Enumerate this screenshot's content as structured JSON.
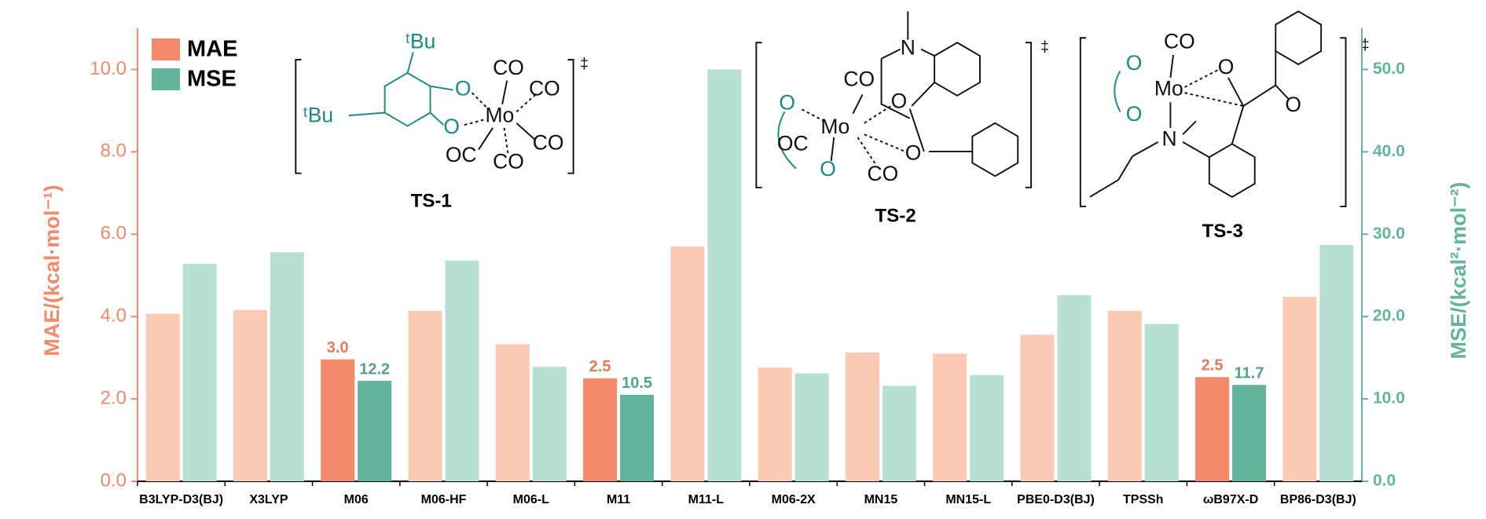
{
  "chart_data": {
    "type": "bar",
    "categories": [
      "B3LYP-D3(BJ)",
      "X3LYP",
      "M06",
      "M06-HF",
      "M06-L",
      "M11",
      "M11-L",
      "M06-2X",
      "MN15",
      "MN15-L",
      "PBE0-D3(BJ)",
      "TPSSh",
      "ωB97X-D",
      "BP86-D3(BJ)"
    ],
    "ylabel": "MAE/(kcal·mol⁻¹)",
    "y2label": "MSE/(kcal²·mol⁻²)",
    "ylim": [
      0,
      11
    ],
    "yticks": [
      {
        "value": 0,
        "label": "0.0"
      },
      {
        "value": 2,
        "label": "2.0"
      },
      {
        "value": 4,
        "label": "4.0"
      },
      {
        "value": 6,
        "label": "6.0"
      },
      {
        "value": 8,
        "label": "8.0"
      },
      {
        "value": 10,
        "label": "10.0"
      }
    ],
    "y2lim": [
      0,
      55
    ],
    "y2ticks": [
      {
        "value": 0,
        "label": "0.0"
      },
      {
        "value": 10,
        "label": "10.0"
      },
      {
        "value": 20,
        "label": "20.0"
      },
      {
        "value": 30,
        "label": "30.0"
      },
      {
        "value": 40,
        "label": "40.0"
      },
      {
        "value": 50,
        "label": "50.0"
      }
    ],
    "legend": "upper left",
    "series": [
      {
        "name": "MAE",
        "color": "#f4896b",
        "axis": "y",
        "values": [
          4.07,
          4.16,
          2.96,
          4.14,
          3.33,
          2.5,
          5.7,
          2.76,
          3.13,
          3.1,
          3.56,
          4.14,
          2.53,
          4.48
        ],
        "value_labels": [
          null,
          null,
          "3.0",
          null,
          null,
          "2.5",
          null,
          null,
          null,
          null,
          null,
          null,
          "2.5",
          null
        ],
        "colors": [
          "#fcc9b4",
          "#fcc9b4",
          "#f4896b",
          "#fcc9b4",
          "#fcc9b4",
          "#f4896b",
          "#fcc9b4",
          "#fcc9b4",
          "#fcc9b4",
          "#fcc9b4",
          "#fcc9b4",
          "#fcc9b4",
          "#f4896b",
          "#fcc9b4"
        ]
      },
      {
        "name": "MSE",
        "color": "#62b49a",
        "axis": "y2",
        "values": [
          26.4,
          27.8,
          12.2,
          26.8,
          13.9,
          10.5,
          50.0,
          13.1,
          11.6,
          12.9,
          22.6,
          19.1,
          11.7,
          28.7
        ],
        "value_labels": [
          null,
          null,
          "12.2",
          null,
          null,
          "10.5",
          null,
          null,
          null,
          null,
          null,
          null,
          "11.7",
          null
        ],
        "colors": [
          "#b5e0d2",
          "#b5e0d2",
          "#62b49a",
          "#b5e0d2",
          "#b5e0d2",
          "#62b49a",
          "#b5e0d2",
          "#b5e0d2",
          "#b5e0d2",
          "#b5e0d2",
          "#b5e0d2",
          "#b5e0d2",
          "#62b49a",
          "#b5e0d2"
        ]
      }
    ],
    "structures": [
      {
        "label": "TS-1",
        "atoms": [
          "ᵗBu",
          "ᵗBu",
          "O",
          "O",
          "Mo",
          "CO",
          "CO",
          "CO",
          "OC",
          "CO",
          "‡"
        ]
      },
      {
        "label": "TS-2",
        "atoms": [
          "Mo",
          "CO",
          "O",
          "O",
          "OC",
          "CO",
          "N",
          "O",
          "O",
          "‡"
        ]
      },
      {
        "label": "TS-3",
        "atoms": [
          "Mo",
          "CO",
          "O",
          "O",
          "O",
          "N",
          "O",
          "‡"
        ]
      }
    ]
  }
}
